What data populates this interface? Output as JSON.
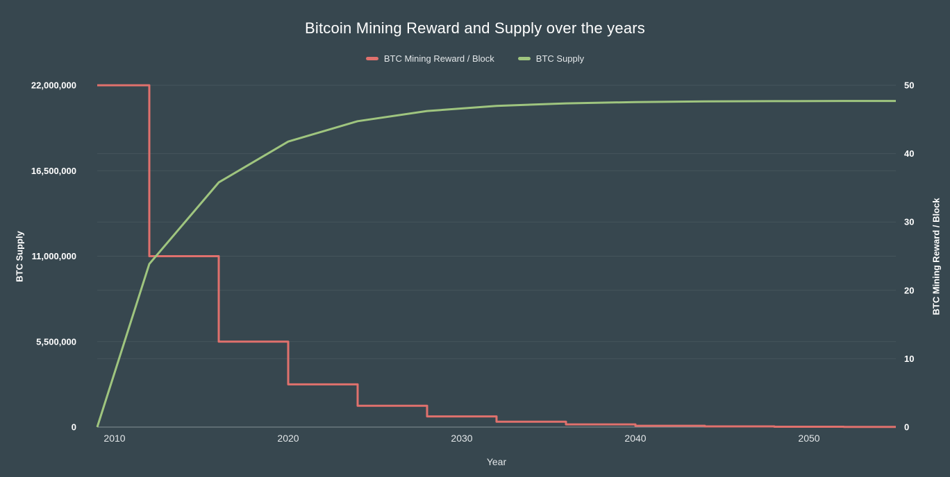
{
  "colors": {
    "background": "#37474f",
    "reward_line": "#e0716d",
    "supply_line": "#9fc57f",
    "gridline": "rgba(255,255,255,0.08)",
    "axis_line": "rgba(255,255,255,0.35)",
    "text": "#ffffff",
    "muted_text": "#e3e7e9"
  },
  "chart_data": {
    "type": "line",
    "title": "Bitcoin Mining Reward and Supply over the years",
    "xlabel": "Year",
    "grid": true,
    "legend_position": "top",
    "xlim": [
      2009,
      2055
    ],
    "x_ticks": [
      2010,
      2020,
      2030,
      2040,
      2050
    ],
    "x_tick_labels": [
      "2010",
      "2020",
      "2030",
      "2040",
      "2050"
    ],
    "axes": {
      "left": {
        "label": "BTC Supply",
        "lim": [
          0,
          22000000
        ],
        "ticks": [
          0,
          5500000,
          11000000,
          16500000,
          22000000
        ],
        "tick_labels": [
          "0",
          "5,500,000",
          "11,000,000",
          "16,500,000",
          "22,000,000"
        ]
      },
      "right": {
        "label": "BTC Mining Reward / Block",
        "lim": [
          0,
          50
        ],
        "ticks": [
          0,
          10,
          20,
          30,
          40,
          50
        ],
        "tick_labels": [
          "0",
          "10",
          "20",
          "30",
          "40",
          "50"
        ]
      }
    },
    "series": [
      {
        "name": "BTC Mining Reward / Block",
        "axis": "right",
        "color": "#e0716d",
        "type": "step",
        "points": [
          [
            2009,
            50
          ],
          [
            2012,
            50
          ],
          [
            2012,
            25
          ],
          [
            2016,
            25
          ],
          [
            2016,
            12.5
          ],
          [
            2020,
            12.5
          ],
          [
            2020,
            6.25
          ],
          [
            2024,
            6.25
          ],
          [
            2024,
            3.125
          ],
          [
            2028,
            3.125
          ],
          [
            2028,
            1.5625
          ],
          [
            2032,
            1.5625
          ],
          [
            2032,
            0.78125
          ],
          [
            2036,
            0.78125
          ],
          [
            2036,
            0.390625
          ],
          [
            2040,
            0.390625
          ],
          [
            2040,
            0.1953125
          ],
          [
            2044,
            0.1953125
          ],
          [
            2044,
            0.09765625
          ],
          [
            2048,
            0.09765625
          ],
          [
            2048,
            0.048828125
          ],
          [
            2052,
            0.048828125
          ],
          [
            2052,
            0.0244140625
          ],
          [
            2055,
            0.0244140625
          ]
        ]
      },
      {
        "name": "BTC Supply",
        "axis": "left",
        "color": "#9fc57f",
        "type": "line",
        "points": [
          [
            2009,
            0
          ],
          [
            2012,
            10500000
          ],
          [
            2016,
            15750000
          ],
          [
            2020,
            18375000
          ],
          [
            2024,
            19687500
          ],
          [
            2028,
            20343750
          ],
          [
            2032,
            20671875
          ],
          [
            2036,
            20835938
          ],
          [
            2040,
            20917969
          ],
          [
            2044,
            20958984
          ],
          [
            2048,
            20979492
          ],
          [
            2052,
            20989746
          ],
          [
            2055,
            20993592
          ]
        ]
      }
    ]
  }
}
